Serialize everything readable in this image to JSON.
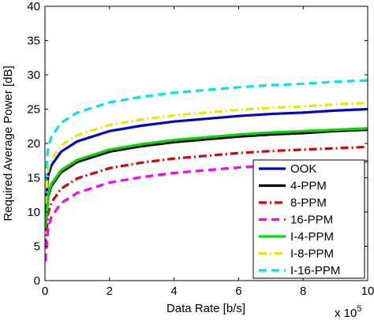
{
  "chart_data": {
    "type": "line",
    "xlabel": "Data Rate [b/s]",
    "ylabel": "Required Average Power [dB]",
    "x_exponent_label": "x 10",
    "x_exponent_power": "5",
    "xlim": [
      0,
      1000000
    ],
    "ylim": [
      0,
      40
    ],
    "grid": false,
    "legend_position": "bottom-right",
    "x_ticks": [
      0,
      200000,
      400000,
      600000,
      800000,
      1000000
    ],
    "x_tick_labels": [
      "0",
      "2",
      "4",
      "6",
      "8",
      "10"
    ],
    "y_ticks": [
      0,
      5,
      10,
      15,
      20,
      25,
      30,
      35,
      40
    ],
    "y_tick_labels": [
      "0",
      "5",
      "10",
      "15",
      "20",
      "25",
      "30",
      "35",
      "40"
    ],
    "x": [
      1000,
      10000,
      20000,
      50000,
      100000,
      200000,
      300000,
      400000,
      500000,
      600000,
      700000,
      800000,
      900000,
      1000000
    ],
    "series": [
      {
        "name": "OOK",
        "color": "#0000cc",
        "dash": "solid",
        "values": [
          10.3,
          15.3,
          16.8,
          18.8,
          20.3,
          21.8,
          22.6,
          23.2,
          23.6,
          24.0,
          24.3,
          24.5,
          24.8,
          25.0
        ]
      },
      {
        "name": "4-PPM",
        "color": "#000000",
        "dash": "solid",
        "values": [
          7.3,
          12.3,
          13.8,
          15.8,
          17.3,
          18.8,
          19.6,
          20.2,
          20.6,
          21.0,
          21.3,
          21.5,
          21.8,
          22.0
        ]
      },
      {
        "name": "8-PPM",
        "color": "#dd0000",
        "dash": "dashdot",
        "values": [
          4.9,
          9.9,
          11.4,
          13.4,
          14.9,
          16.4,
          17.2,
          17.8,
          18.2,
          18.6,
          18.9,
          19.1,
          19.3,
          19.5
        ]
      },
      {
        "name": "16-PPM",
        "color": "#ff00ff",
        "dash": "dashed",
        "values": [
          2.8,
          7.8,
          9.3,
          11.3,
          12.8,
          14.3,
          15.1,
          15.7,
          16.1,
          16.5,
          16.8,
          17.0,
          17.2,
          17.4
        ]
      },
      {
        "name": "I-4-PPM",
        "color": "#00dd00",
        "dash": "solid",
        "values": [
          7.6,
          12.6,
          14.1,
          16.1,
          17.6,
          19.1,
          19.9,
          20.5,
          20.9,
          21.3,
          21.6,
          21.8,
          22.0,
          22.2
        ]
      },
      {
        "name": "I-8-PPM",
        "color": "#e8e800",
        "dash": "dashdot",
        "values": [
          11.2,
          16.2,
          17.7,
          19.7,
          21.2,
          22.7,
          23.5,
          24.1,
          24.5,
          24.9,
          25.2,
          25.4,
          25.7,
          25.9
        ]
      },
      {
        "name": "I-16-PPM",
        "color": "#00e5ee",
        "dash": "dashed",
        "values": [
          14.5,
          19.5,
          21.0,
          23.0,
          24.5,
          26.0,
          26.8,
          27.4,
          27.8,
          28.2,
          28.5,
          28.7,
          29.0,
          29.2
        ]
      }
    ]
  }
}
